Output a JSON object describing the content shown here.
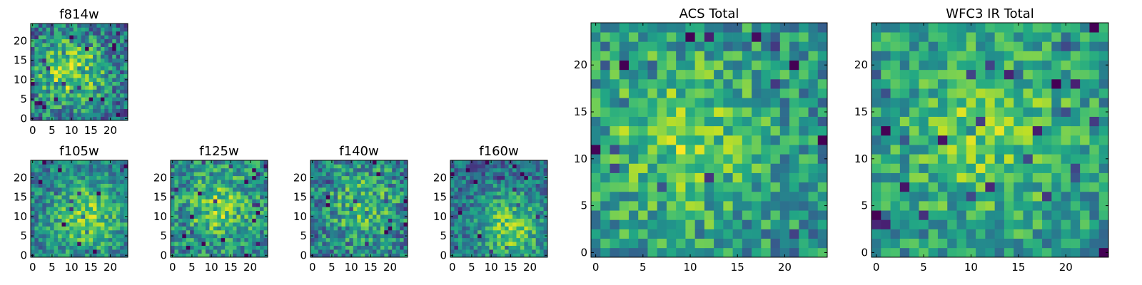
{
  "figure": {
    "colormap": "viridis",
    "background": "#ffffff"
  },
  "chart_data": [
    {
      "id": "f814w",
      "type": "heatmap",
      "title": "f814w",
      "grid_size": 25,
      "xlim": [
        -0.5,
        24.5
      ],
      "ylim": [
        -0.5,
        24.5
      ],
      "xticks": [
        0,
        5,
        10,
        15,
        20
      ],
      "yticks": [
        0,
        5,
        10,
        15,
        20
      ],
      "xlabel": "",
      "ylabel": "",
      "value_range": [
        0,
        1
      ],
      "description": "noisy field, brighter (yellow) blob near center (~x=10, y=12), darker purple specks toward lower-left",
      "seed": 814,
      "center": [
        10,
        12
      ],
      "peak": 0.78,
      "base": 0.36,
      "noise": 0.28
    },
    {
      "id": "f105w",
      "type": "heatmap",
      "title": "f105w",
      "grid_size": 25,
      "xlim": [
        -0.5,
        24.5
      ],
      "ylim": [
        -0.5,
        24.5
      ],
      "xticks": [
        0,
        5,
        10,
        15,
        20
      ],
      "yticks": [
        0,
        5,
        10,
        15,
        20
      ],
      "xlabel": "",
      "ylabel": "",
      "value_range": [
        0,
        1
      ],
      "description": "yellow-green, brighter toward center-right, darker near lower-left",
      "seed": 105,
      "center": [
        14,
        10
      ],
      "peak": 0.62,
      "base": 0.42,
      "noise": 0.22
    },
    {
      "id": "f125w",
      "type": "heatmap",
      "title": "f125w",
      "grid_size": 25,
      "xlim": [
        -0.5,
        24.5
      ],
      "ylim": [
        -0.5,
        24.5
      ],
      "xticks": [
        0,
        5,
        10,
        15,
        20
      ],
      "yticks": [
        0,
        5,
        10,
        15,
        20
      ],
      "xlabel": "",
      "ylabel": "",
      "value_range": [
        0,
        1
      ],
      "description": "mottled green/yellow field with scattered dark specks",
      "seed": 125,
      "center": [
        12,
        12
      ],
      "peak": 0.5,
      "base": 0.45,
      "noise": 0.26
    },
    {
      "id": "f140w",
      "type": "heatmap",
      "title": "f140w",
      "grid_size": 25,
      "xlim": [
        -0.5,
        24.5
      ],
      "ylim": [
        -0.5,
        24.5
      ],
      "xticks": [
        0,
        5,
        10,
        15,
        20
      ],
      "yticks": [
        0,
        5,
        10,
        15,
        20
      ],
      "xlabel": "",
      "ylabel": "",
      "value_range": [
        0,
        1
      ],
      "description": "mottled field, darker blue-purple specks in lower-left area",
      "seed": 140,
      "center": [
        13,
        13
      ],
      "peak": 0.45,
      "base": 0.42,
      "noise": 0.28
    },
    {
      "id": "f160w",
      "type": "heatmap",
      "title": "f160w",
      "grid_size": 25,
      "xlim": [
        -0.5,
        24.5
      ],
      "ylim": [
        -0.5,
        24.5
      ],
      "xticks": [
        0,
        5,
        10,
        15,
        20
      ],
      "yticks": [
        0,
        5,
        10,
        15,
        20
      ],
      "xlabel": "",
      "ylabel": "",
      "value_range": [
        0,
        1
      ],
      "description": "bright yellow region lower-right, dark purple patch lower-left",
      "seed": 160,
      "center": [
        15,
        7
      ],
      "peak": 0.7,
      "base": 0.36,
      "noise": 0.22
    },
    {
      "id": "acs-total",
      "type": "heatmap",
      "title": "ACS Total",
      "grid_size": 25,
      "xlim": [
        -0.5,
        24.5
      ],
      "ylim": [
        -0.5,
        24.5
      ],
      "xticks": [
        0,
        5,
        10,
        15,
        20
      ],
      "yticks": [
        0,
        5,
        10,
        15,
        20
      ],
      "xlabel": "",
      "ylabel": "",
      "value_range": [
        0,
        1
      ],
      "description": "green field, brightest yellow near center (~x=9, y=12), dark purple cells along left edge",
      "seed": 2001,
      "center": [
        9,
        12
      ],
      "peak": 0.45,
      "base": 0.5,
      "noise": 0.24
    },
    {
      "id": "wfc3-ir-total",
      "type": "heatmap",
      "title": "WFC3 IR Total",
      "grid_size": 25,
      "xlim": [
        -0.5,
        24.5
      ],
      "ylim": [
        -0.5,
        24.5
      ],
      "xticks": [
        0,
        5,
        10,
        15,
        20
      ],
      "yticks": [
        0,
        5,
        10,
        15,
        20
      ],
      "xlabel": "",
      "ylabel": "",
      "value_range": [
        0,
        1
      ],
      "description": "green field, brighter yellow near center (~x=12, y=12), a few dark purple specks",
      "seed": 2002,
      "center": [
        12,
        13
      ],
      "peak": 0.42,
      "base": 0.52,
      "noise": 0.22
    }
  ]
}
